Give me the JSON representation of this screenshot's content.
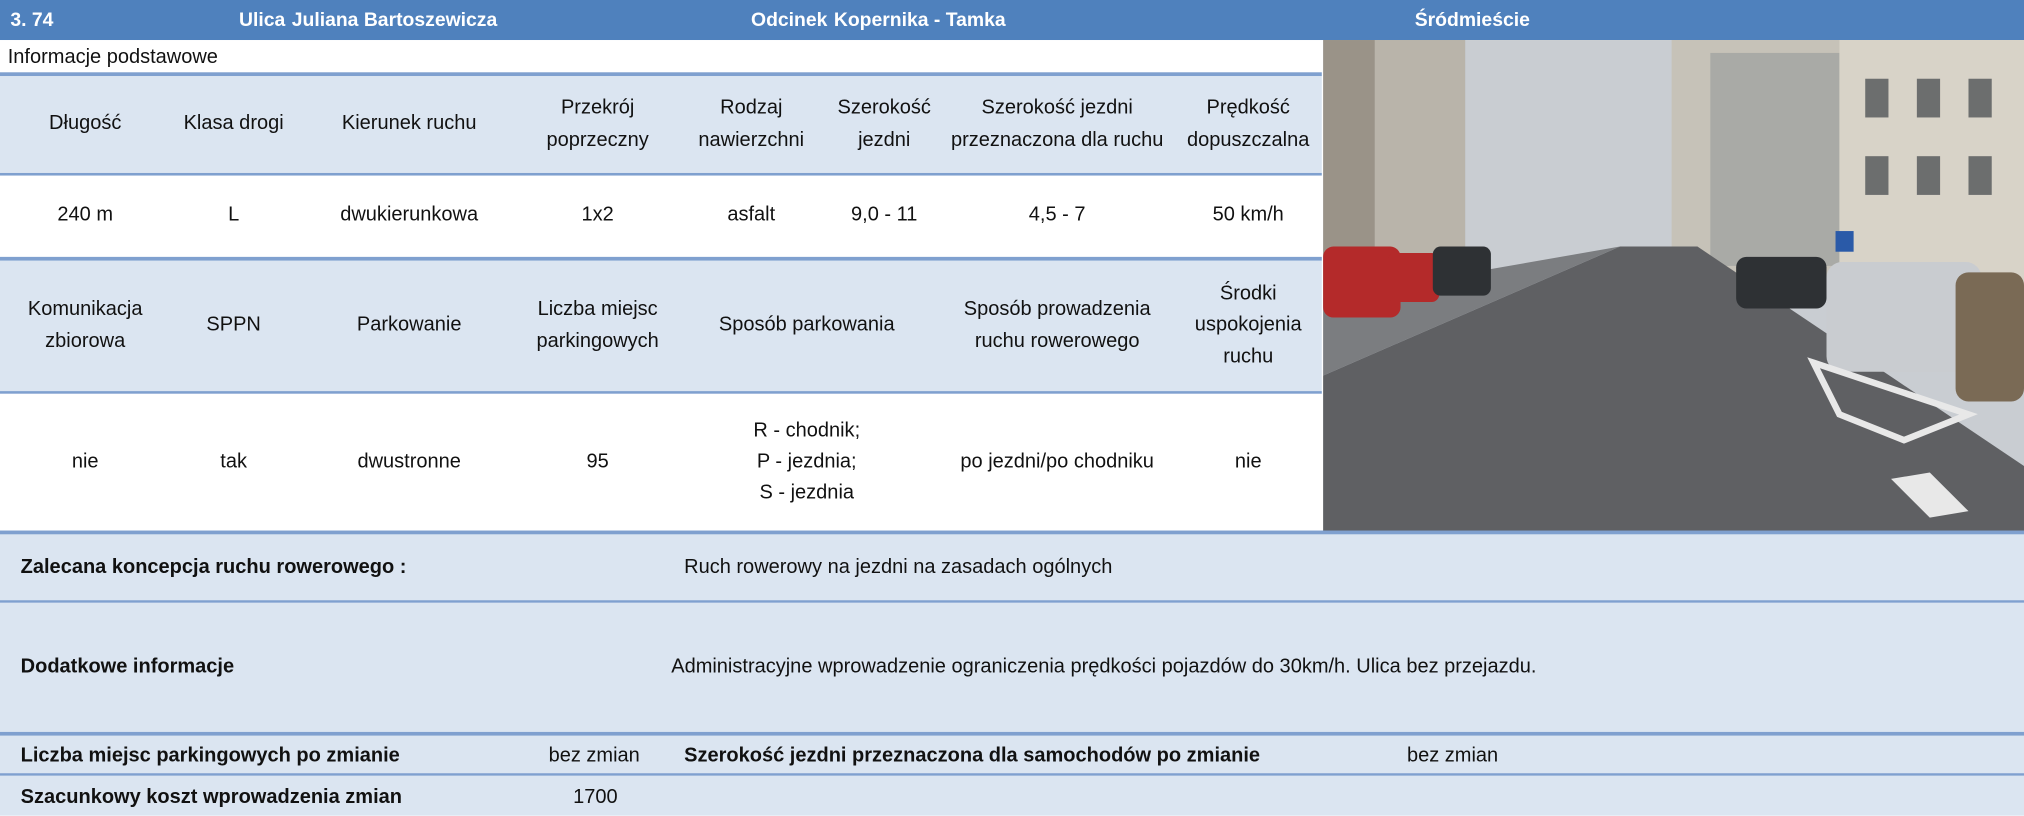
{
  "header": {
    "number": "3. 74",
    "street_label": "Ulica",
    "street": "Juliana Bartoszewicza",
    "section_label": "Odcinek",
    "section": "Kopernika - Tamka",
    "district": "Śródmieście"
  },
  "section_title": "Informacje podstawowe",
  "table1": {
    "headers": [
      "Długość",
      "Klasa drogi",
      "Kierunek ruchu",
      "Przekrój poprzeczny",
      "Rodzaj nawierzchni",
      "Szerokość jezdni",
      "Szerokość jezdni przeznaczona dla ruchu",
      "Prędkość dopuszczalna"
    ],
    "values": [
      "240 m",
      "L",
      "dwukierunkowa",
      "1x2",
      "asfalt",
      "9,0 - 11",
      "4,5 - 7",
      "50 km/h"
    ]
  },
  "table2": {
    "headers": [
      "Komunikacja zbiorowa",
      "SPPN",
      "Parkowanie",
      "Liczba miejsc parkingowych",
      "Sposób parkowania",
      "Sposób prowadzenia ruchu rowerowego",
      "Środki uspokojenia ruchu"
    ],
    "values": [
      "nie",
      "tak",
      "dwustronne",
      "95",
      "R - chodnik;\nP - jezdnia;\nS - jezdnia",
      "po jezdni/po chodniku",
      "nie"
    ]
  },
  "recommended": {
    "label": "Zalecana koncepcja ruchu rowerowego :",
    "value": "Ruch rowerowy na jezdni na zasadach ogólnych"
  },
  "additional": {
    "label": "Dodatkowe informacje",
    "value": "Administracyjne wprowadzenie ograniczenia prędkości pojazdów do 30km/h. Ulica bez przejazdu."
  },
  "parking_after": {
    "label": "Liczba miejsc parkingowych po zmianie",
    "value": "bez zmian"
  },
  "width_after": {
    "label": "Szerokość jezdni przeznaczona dla samochodów po zmianie",
    "value": "bez zmian"
  },
  "cost": {
    "label": "Szacunkowy koszt wprowadzenia zmian",
    "value": "1700"
  }
}
